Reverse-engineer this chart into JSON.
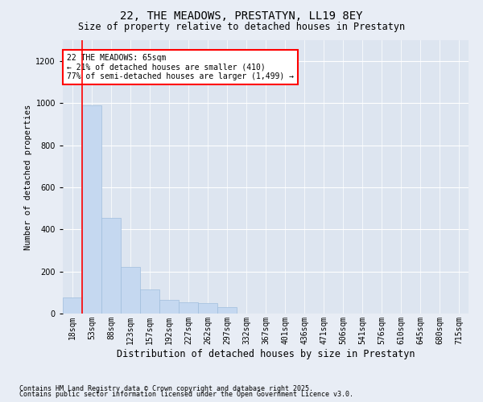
{
  "title": "22, THE MEADOWS, PRESTATYN, LL19 8EY",
  "subtitle": "Size of property relative to detached houses in Prestatyn",
  "xlabel": "Distribution of detached houses by size in Prestatyn",
  "ylabel": "Number of detached properties",
  "bar_color": "#c5d8f0",
  "bar_edge_color": "#a0bedd",
  "background_color": "#e8edf5",
  "plot_bg_color": "#dde5f0",
  "categories": [
    "18sqm",
    "53sqm",
    "88sqm",
    "123sqm",
    "157sqm",
    "192sqm",
    "227sqm",
    "262sqm",
    "297sqm",
    "332sqm",
    "367sqm",
    "401sqm",
    "436sqm",
    "471sqm",
    "506sqm",
    "541sqm",
    "576sqm",
    "610sqm",
    "645sqm",
    "680sqm",
    "715sqm"
  ],
  "values": [
    75,
    990,
    455,
    220,
    115,
    65,
    55,
    50,
    30,
    0,
    0,
    0,
    0,
    0,
    0,
    0,
    0,
    0,
    0,
    0,
    0
  ],
  "ylim": [
    0,
    1300
  ],
  "yticks": [
    0,
    200,
    400,
    600,
    800,
    1000,
    1200
  ],
  "annotation_text": "22 THE MEADOWS: 65sqm\n← 21% of detached houses are smaller (410)\n77% of semi-detached houses are larger (1,499) →",
  "red_line_bin_index": 1,
  "footer1": "Contains HM Land Registry data © Crown copyright and database right 2025.",
  "footer2": "Contains public sector information licensed under the Open Government Licence v3.0.",
  "title_fontsize": 10,
  "subtitle_fontsize": 8.5,
  "ylabel_fontsize": 7.5,
  "xlabel_fontsize": 8.5,
  "tick_fontsize": 7,
  "annotation_fontsize": 7,
  "footer_fontsize": 6
}
